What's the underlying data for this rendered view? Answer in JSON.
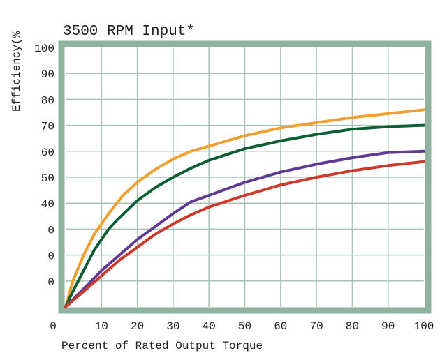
{
  "chart_data": {
    "type": "line",
    "title": "3500 RPM Input*",
    "xlabel": "Percent of Rated Output Torque",
    "ylabel": "Efficiency(%",
    "xlim": [
      0,
      100
    ],
    "ylim": [
      0,
      100
    ],
    "grid": true,
    "x_tick_labels": [
      "0",
      "10",
      "20",
      "30",
      "40",
      "50",
      "60",
      "70",
      "80",
      "90",
      "100"
    ],
    "y_tick_labels": [
      "100",
      "90",
      "80",
      "70",
      "60",
      "50",
      "40",
      "0",
      "0",
      "0"
    ],
    "series": [
      {
        "color": "#f0a030",
        "x": [
          0,
          2,
          5,
          8,
          12,
          16,
          20,
          25,
          30,
          35,
          40,
          50,
          60,
          70,
          80,
          90,
          100
        ],
        "y": [
          0,
          10,
          20,
          28,
          36,
          43,
          48,
          53,
          57,
          60,
          62,
          66,
          69,
          71,
          73,
          74.5,
          76
        ]
      },
      {
        "color": "#0d5e34",
        "x": [
          0,
          2,
          5,
          8,
          12,
          14,
          20,
          25,
          30,
          35,
          40,
          50,
          60,
          70,
          80,
          90,
          100
        ],
        "y": [
          0,
          6,
          14,
          22,
          30,
          33,
          41,
          46,
          50,
          53.5,
          56.5,
          61,
          64,
          66.5,
          68.5,
          69.5,
          70
        ]
      },
      {
        "color": "#5e3a96",
        "x": [
          0,
          5,
          10,
          15,
          20,
          25,
          30,
          35,
          40,
          50,
          60,
          70,
          80,
          90,
          100
        ],
        "y": [
          0,
          7,
          14,
          20,
          26,
          31,
          36,
          40.5,
          43,
          48,
          52,
          55,
          57.5,
          59.5,
          60
        ]
      },
      {
        "color": "#cc3a2c",
        "x": [
          0,
          5,
          10,
          15,
          20,
          25,
          30,
          35,
          40,
          50,
          60,
          70,
          80,
          90,
          100
        ],
        "y": [
          0,
          6,
          12,
          18,
          23,
          28,
          32,
          35.5,
          38.5,
          43,
          47,
          50,
          52.5,
          54.5,
          56
        ]
      }
    ]
  }
}
